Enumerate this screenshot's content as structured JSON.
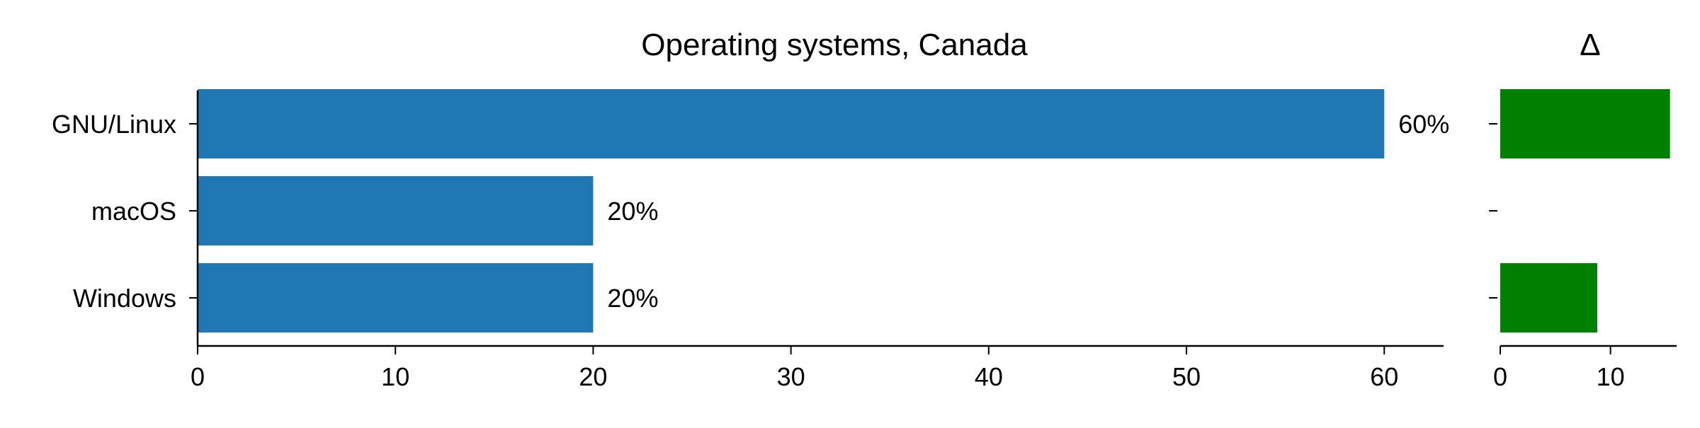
{
  "chart_data": [
    {
      "type": "bar",
      "orientation": "horizontal",
      "title": "Operating systems, Canada",
      "categories": [
        "GNU/Linux",
        "macOS",
        "Windows"
      ],
      "values": [
        60,
        20,
        20
      ],
      "data_labels": [
        "60%",
        "20%",
        "20%"
      ],
      "xlim": [
        0,
        63
      ],
      "xticks": [
        "0",
        "10",
        "20",
        "30",
        "40",
        "50",
        "60"
      ],
      "grid": false,
      "bar_color": "#1f77b4"
    },
    {
      "type": "bar",
      "orientation": "horizontal",
      "title": "Δ",
      "categories": [
        "GNU/Linux",
        "macOS",
        "Windows"
      ],
      "values": [
        15.4,
        0,
        8.8
      ],
      "xlim": [
        0,
        16
      ],
      "xticks": [
        "0",
        "10"
      ],
      "grid": false,
      "bar_color": "#008000"
    }
  ]
}
